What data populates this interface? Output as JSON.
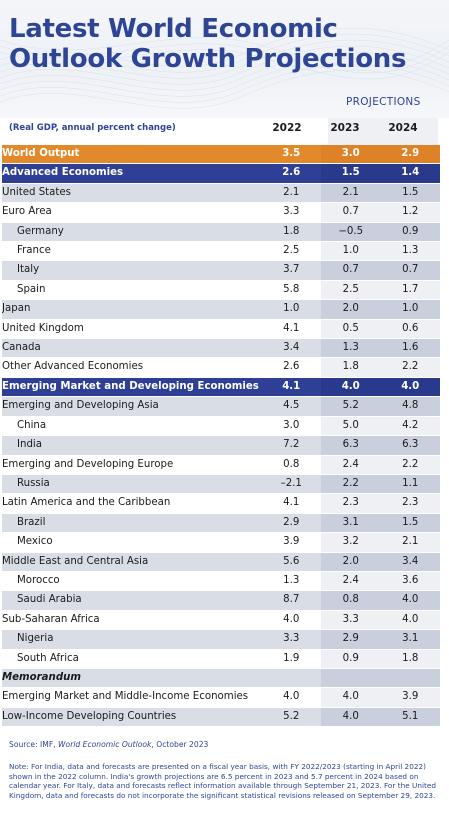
{
  "header": {
    "title_line1": "Latest World Economic",
    "title_line2": "Outlook Growth Projections",
    "projections_label": "PROJECTIONS"
  },
  "columns": {
    "unit_label": "(Real GDP, annual percent change)",
    "years": [
      "2022",
      "2023",
      "2024"
    ]
  },
  "rows": [
    {
      "name": "World Output",
      "v2022": "3.5",
      "v2023": "3.0",
      "v2024": "2.9",
      "style": "orange"
    },
    {
      "name": "Advanced Economies",
      "v2022": "2.6",
      "v2023": "1.5",
      "v2024": "1.4",
      "style": "navy"
    },
    {
      "name": "United States",
      "v2022": "2.1",
      "v2023": "2.1",
      "v2024": "1.5",
      "style": "grey"
    },
    {
      "name": "Euro Area",
      "v2022": "3.3",
      "v2023": "0.7",
      "v2024": "1.2",
      "style": "white"
    },
    {
      "name": "Germany",
      "v2022": "1.8",
      "v2023": "−0.5",
      "v2024": "0.9",
      "style": "grey",
      "sub": true
    },
    {
      "name": "France",
      "v2022": "2.5",
      "v2023": "1.0",
      "v2024": "1.3",
      "style": "white",
      "sub": true
    },
    {
      "name": "Italy",
      "v2022": "3.7",
      "v2023": "0.7",
      "v2024": "0.7",
      "style": "grey",
      "sub": true
    },
    {
      "name": "Spain",
      "v2022": "5.8",
      "v2023": "2.5",
      "v2024": "1.7",
      "style": "white",
      "sub": true
    },
    {
      "name": "Japan",
      "v2022": "1.0",
      "v2023": "2.0",
      "v2024": "1.0",
      "style": "grey"
    },
    {
      "name": "United Kingdom",
      "v2022": "4.1",
      "v2023": "0.5",
      "v2024": "0.6",
      "style": "white"
    },
    {
      "name": "Canada",
      "v2022": "3.4",
      "v2023": "1.3",
      "v2024": "1.6",
      "style": "grey"
    },
    {
      "name": "Other Advanced Economies",
      "v2022": "2.6",
      "v2023": "1.8",
      "v2024": "2.2",
      "style": "white"
    },
    {
      "name": "Emerging Market and Developing Economies",
      "v2022": "4.1",
      "v2023": "4.0",
      "v2024": "4.0",
      "style": "navy"
    },
    {
      "name": "Emerging and Developing Asia",
      "v2022": "4.5",
      "v2023": "5.2",
      "v2024": "4.8",
      "style": "grey"
    },
    {
      "name": "China",
      "v2022": "3.0",
      "v2023": "5.0",
      "v2024": "4.2",
      "style": "white",
      "sub": true
    },
    {
      "name": "India",
      "v2022": "7.2",
      "v2023": "6.3",
      "v2024": "6.3",
      "style": "grey",
      "sub": true
    },
    {
      "name": "Emerging and Developing Europe",
      "v2022": "0.8",
      "v2023": "2.4",
      "v2024": "2.2",
      "style": "white"
    },
    {
      "name": "Russia",
      "v2022": "–2.1",
      "v2023": "2.2",
      "v2024": "1.1",
      "style": "grey",
      "sub": true
    },
    {
      "name": "Latin America and the Caribbean",
      "v2022": "4.1",
      "v2023": "2.3",
      "v2024": "2.3",
      "style": "white"
    },
    {
      "name": "Brazil",
      "v2022": "2.9",
      "v2023": "3.1",
      "v2024": "1.5",
      "style": "grey",
      "sub": true
    },
    {
      "name": "Mexico",
      "v2022": "3.9",
      "v2023": "3.2",
      "v2024": "2.1",
      "style": "white",
      "sub": true
    },
    {
      "name": "Middle East and Central Asia",
      "v2022": "5.6",
      "v2023": "2.0",
      "v2024": "3.4",
      "style": "grey"
    },
    {
      "name": "Morocco",
      "v2022": "1.3",
      "v2023": "2.4",
      "v2024": "3.6",
      "style": "white",
      "sub": true
    },
    {
      "name": "Saudi Arabia",
      "v2022": "8.7",
      "v2023": "0.8",
      "v2024": "4.0",
      "style": "grey",
      "sub": true
    },
    {
      "name": "Sub-Saharan Africa",
      "v2022": "4.0",
      "v2023": "3.3",
      "v2024": "4.0",
      "style": "white"
    },
    {
      "name": "Nigeria",
      "v2022": "3.3",
      "v2023": "2.9",
      "v2024": "3.1",
      "style": "grey",
      "sub": true
    },
    {
      "name": "South Africa",
      "v2022": "1.9",
      "v2023": "0.9",
      "v2024": "1.8",
      "style": "white",
      "sub": true
    },
    {
      "name": "Memorandum",
      "v2022": "",
      "v2023": "",
      "v2024": "",
      "style": "grey",
      "memo": true
    },
    {
      "name": "Emerging Market and Middle-Income Economies",
      "v2022": "4.0",
      "v2023": "4.0",
      "v2024": "3.9",
      "style": "white"
    },
    {
      "name": "Low-Income Developing Countries",
      "v2022": "5.2",
      "v2023": "4.0",
      "v2024": "5.1",
      "style": "grey"
    }
  ],
  "footer": {
    "source_prefix": "Source: IMF, ",
    "source_publication": "World Economic Outlook",
    "source_suffix": ", October 2023",
    "note": "Note: For India, data and forecasts are presented on a fiscal year basis, with FY 2022/2023 (starting in April 2022) shown in the 2022 column. India's growth projections are 6.5 percent in 2023 and 5.7 percent in 2024 based on calendar year. For Italy, data and forecasts reflect information available through September 21, 2023. For the United Kingdom, data and forecasts do not incorporate the significant statistical revisions released on September 29, 2023."
  },
  "colors": {
    "brand_blue": "#2e4596",
    "orange": "#e28a2b",
    "navy": "#2e3f95",
    "grey_row": "#d8dde6"
  }
}
